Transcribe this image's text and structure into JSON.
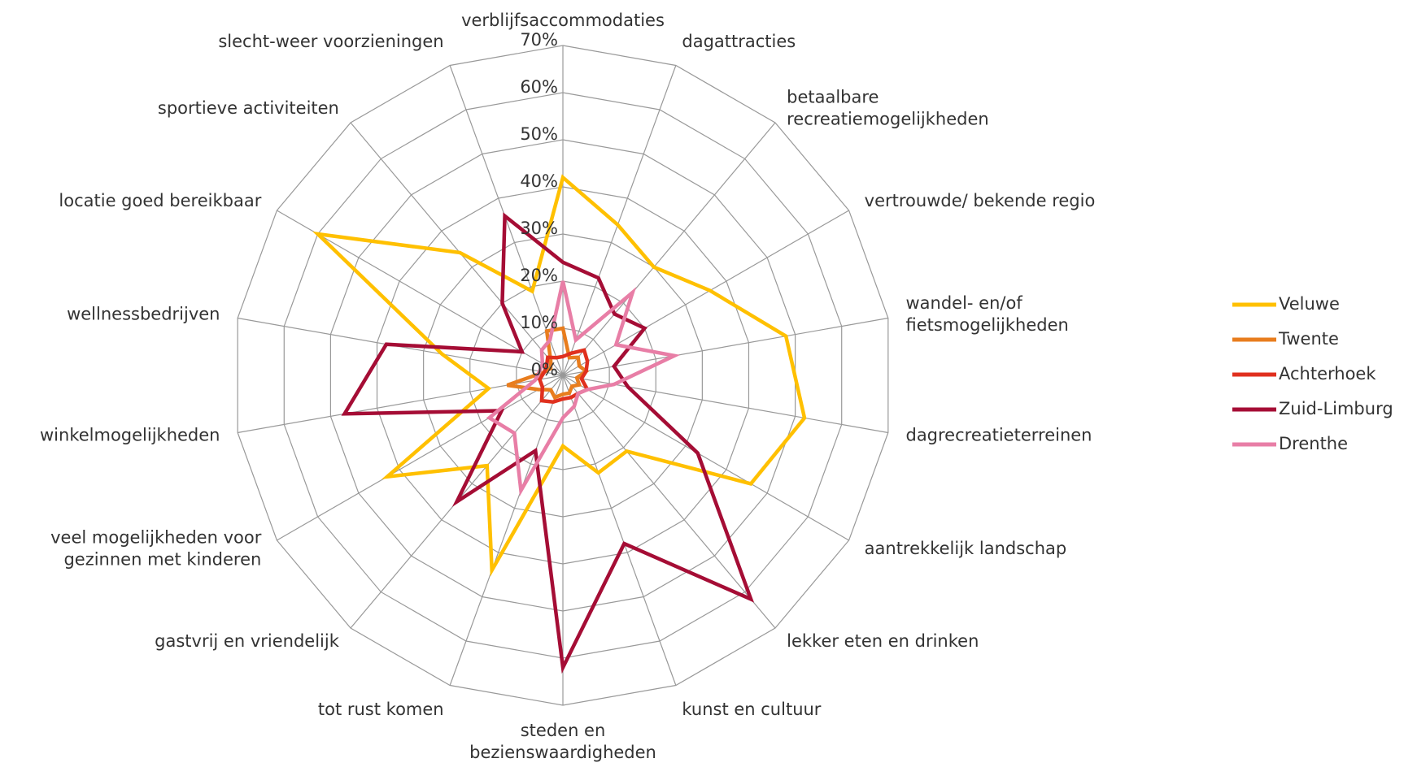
{
  "chart_data": {
    "type": "radar",
    "categories": [
      "verblijfsaccommodaties",
      "dagattracties",
      "betaalbare\nrecreatiemogelijkheden",
      "vertrouwde/ bekende regio",
      "wandel- en/of\nfietsmogelijkheden",
      "dagrecreatieterreinen",
      "aantrekkelijk landschap",
      "lekker eten en drinken",
      "kunst en cultuur",
      "steden en\nbezienswaardigheden",
      "tot rust komen",
      "gastvrij en vriendelijk",
      "veel mogelijkheden voor\ngezinnen met kinderen",
      "winkelmogelijkheden",
      "wellnessbedrijven",
      "locatie goed bereikbaar",
      "sportieve activiteiten",
      "slecht-weer voorzieningen"
    ],
    "series": [
      {
        "name": "Veluwe",
        "color": "#ffc000",
        "values": [
          42,
          34,
          30,
          36,
          48,
          52,
          46,
          21,
          22,
          15,
          44,
          25,
          43,
          16,
          26,
          60,
          34,
          19
        ]
      },
      {
        "name": "Twente",
        "color": "#e87d1e",
        "values": [
          10,
          4,
          5,
          4,
          5,
          3,
          4,
          3,
          4,
          4,
          5,
          4,
          6,
          12,
          4,
          3,
          4,
          10
        ]
      },
      {
        "name": "Achterhoek",
        "color": "#e0301e",
        "values": [
          4,
          5,
          7,
          6,
          5,
          4,
          6,
          5,
          5,
          5,
          6,
          7,
          5,
          5,
          4,
          4,
          5,
          4
        ]
      },
      {
        "name": "Zuid-Limburg",
        "color": "#a50d35",
        "values": [
          24,
          22,
          17,
          20,
          11,
          14,
          33,
          62,
          38,
          62,
          17,
          35,
          15,
          47,
          38,
          10,
          20,
          36
        ]
      },
      {
        "name": "Drenthe",
        "color": "#e87ea6",
        "values": [
          20,
          8,
          23,
          13,
          24,
          11,
          6,
          5,
          7,
          9,
          26,
          16,
          18,
          6,
          5,
          5,
          7,
          8
        ]
      }
    ],
    "ylim": [
      0,
      70
    ],
    "yticks": [
      {
        "value": 0,
        "label": "0%"
      },
      {
        "value": 10,
        "label": "10%"
      },
      {
        "value": 20,
        "label": "20%"
      },
      {
        "value": 30,
        "label": "30%"
      },
      {
        "value": 40,
        "label": "40%"
      },
      {
        "value": 50,
        "label": "50%"
      },
      {
        "value": 60,
        "label": "60%"
      },
      {
        "value": 70,
        "label": "70%"
      }
    ],
    "grid": true,
    "legend": "right"
  }
}
